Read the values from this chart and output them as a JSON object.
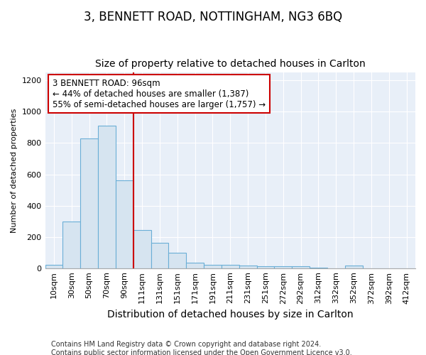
{
  "title": "3, BENNETT ROAD, NOTTINGHAM, NG3 6BQ",
  "subtitle": "Size of property relative to detached houses in Carlton",
  "xlabel": "Distribution of detached houses by size in Carlton",
  "ylabel": "Number of detached properties",
  "categories": [
    "10sqm",
    "30sqm",
    "50sqm",
    "70sqm",
    "90sqm",
    "111sqm",
    "131sqm",
    "151sqm",
    "171sqm",
    "191sqm",
    "211sqm",
    "231sqm",
    "251sqm",
    "272sqm",
    "292sqm",
    "312sqm",
    "332sqm",
    "352sqm",
    "372sqm",
    "392sqm",
    "412sqm"
  ],
  "values": [
    20,
    300,
    830,
    910,
    560,
    245,
    160,
    100,
    35,
    20,
    20,
    15,
    10,
    10,
    10,
    5,
    0,
    15,
    0,
    0,
    0
  ],
  "bar_face_color": "#d6e4f0",
  "bar_edge_color": "#6aaed6",
  "vline_color": "#cc0000",
  "vline_index": 4,
  "annotation_text": "3 BENNETT ROAD: 96sqm\n← 44% of detached houses are smaller (1,387)\n55% of semi-detached houses are larger (1,757) →",
  "annotation_box_facecolor": "#ffffff",
  "annotation_box_edgecolor": "#cc0000",
  "ylim": [
    0,
    1250
  ],
  "yticks": [
    0,
    200,
    400,
    600,
    800,
    1000,
    1200
  ],
  "bg_color": "#e8eff8",
  "fig_bg_color": "#ffffff",
  "title_fontsize": 12,
  "subtitle_fontsize": 10,
  "xlabel_fontsize": 10,
  "ylabel_fontsize": 8,
  "tick_fontsize": 8,
  "annotation_fontsize": 8.5,
  "footer_fontsize": 7,
  "footer_line1": "Contains HM Land Registry data © Crown copyright and database right 2024.",
  "footer_line2": "Contains public sector information licensed under the Open Government Licence v3.0."
}
